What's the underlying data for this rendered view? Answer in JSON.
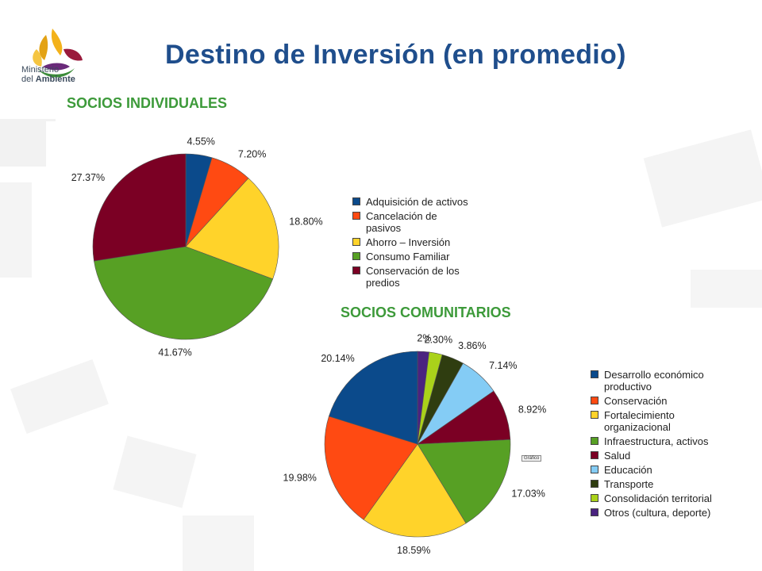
{
  "title": "Destino de Inversión (en promedio)",
  "logo": {
    "line1": "Ministerio",
    "line2_prefix": "del",
    "line2_bold": "Ambiente"
  },
  "grafico_tag": "Gráfico",
  "colors": {
    "title": "#1f4e8c",
    "section_title": "#3d9a3a"
  },
  "chart_data": [
    {
      "type": "pie",
      "title": "SOCIOS INDIVIDUALES",
      "slices": [
        {
          "name": "Adquisición de activos",
          "value": 4.55,
          "label": "4.55%",
          "color": "#0b4a8b"
        },
        {
          "name": "Cancelación de pasivos",
          "value": 7.2,
          "label": "7.20%",
          "color": "#ff4a12"
        },
        {
          "name": "Ahorro – Inversión",
          "value": 18.8,
          "label": "18.80%",
          "color": "#ffd32a"
        },
        {
          "name": "Consumo Familiar",
          "value": 41.67,
          "label": "41.67%",
          "color": "#57a024"
        },
        {
          "name": "Conservación de los predios",
          "value": 27.37,
          "label": "27.37%",
          "color": "#7b0024"
        }
      ],
      "legend": [
        [
          "Adquisición de activos"
        ],
        [
          "Cancelación de",
          "pasivos"
        ],
        [
          "Ahorro – Inversión"
        ],
        [
          "Consumo Familiar"
        ],
        [
          "Conservación de los",
          "predios"
        ]
      ],
      "legend_position": "right"
    },
    {
      "type": "pie",
      "title": "SOCIOS COMUNITARIOS",
      "slices": [
        {
          "name": "Otros (cultura, deporte)",
          "value": 2,
          "label": "2%",
          "color": "#4a2380"
        },
        {
          "name": "Consolidación territorial",
          "value": 2.3,
          "label": "2.30%",
          "color": "#aad21a"
        },
        {
          "name": "Transporte",
          "value": 3.86,
          "label": "3.86%",
          "color": "#2f3d10"
        },
        {
          "name": "Educación",
          "value": 7.14,
          "label": "7.14%",
          "color": "#84ccf5"
        },
        {
          "name": "Salud",
          "value": 8.92,
          "label": "8.92%",
          "color": "#7b0024"
        },
        {
          "name": "Infraestructura, activos",
          "value": 17.03,
          "label": "17.03%",
          "color": "#57a024"
        },
        {
          "name": "Fortalecimiento organizacional",
          "value": 18.59,
          "label": "18.59%",
          "color": "#ffd32a"
        },
        {
          "name": "Conservación",
          "value": 19.98,
          "label": "19.98%",
          "color": "#ff4a12"
        },
        {
          "name": "Desarrollo económico productivo",
          "value": 20.14,
          "label": "20.14%",
          "color": "#0b4a8b"
        }
      ],
      "legend": [
        {
          "lines": [
            "Desarrollo económico",
            "productivo"
          ],
          "color": "#0b4a8b"
        },
        {
          "lines": [
            "Conservación"
          ],
          "color": "#ff4a12"
        },
        {
          "lines": [
            "Fortalecimiento",
            "organizacional"
          ],
          "color": "#ffd32a"
        },
        {
          "lines": [
            "Infraestructura, activos"
          ],
          "color": "#57a024"
        },
        {
          "lines": [
            "Salud"
          ],
          "color": "#7b0024"
        },
        {
          "lines": [
            "Educación"
          ],
          "color": "#84ccf5"
        },
        {
          "lines": [
            "Transporte"
          ],
          "color": "#2f3d10"
        },
        {
          "lines": [
            "Consolidación territorial"
          ],
          "color": "#aad21a"
        },
        {
          "lines": [
            "Otros (cultura, deporte)"
          ],
          "color": "#4a2380"
        }
      ],
      "legend_position": "right"
    }
  ]
}
